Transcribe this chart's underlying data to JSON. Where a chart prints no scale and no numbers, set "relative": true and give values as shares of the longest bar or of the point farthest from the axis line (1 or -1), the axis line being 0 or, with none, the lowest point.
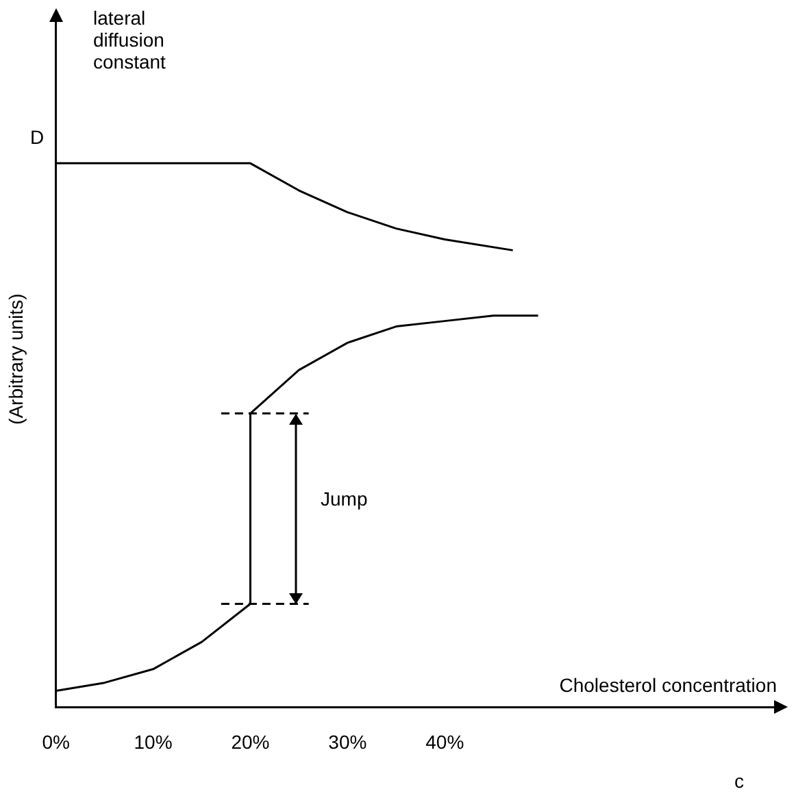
{
  "chart_data": {
    "type": "line",
    "relative": true,
    "xlabel": "Cholesterol concentration",
    "ylabel": "(Arbitrary units)",
    "xlim": [
      0,
      75
    ],
    "xticks": [
      {
        "value": 0,
        "label": "0%"
      },
      {
        "value": 10,
        "label": "10%"
      },
      {
        "value": 20,
        "label": "20%"
      },
      {
        "value": 30,
        "label": "30%"
      },
      {
        "value": 40,
        "label": "40%"
      }
    ],
    "series": [
      {
        "color": "#000000",
        "x": [
          0,
          20,
          25,
          30,
          35,
          40,
          47
        ],
        "values": [
          1,
          1,
          0.95,
          0.91,
          0.88,
          0.86,
          0.84
        ]
      },
      {
        "color": "#000000",
        "x": [
          0,
          5,
          10,
          15,
          20,
          20,
          25,
          30,
          35,
          40,
          45,
          49.6
        ],
        "values": [
          0.03,
          0.045,
          0.07,
          0.12,
          0.19,
          0.54,
          0.62,
          0.67,
          0.7,
          0.71,
          0.72,
          0.72
        ]
      },
      {
        "color": "#000000",
        "line_style": "dashed",
        "x": [
          17,
          26
        ],
        "values": [
          0.54,
          0.54
        ]
      },
      {
        "color": "#000000",
        "line_style": "dashed",
        "x": [
          17,
          26
        ],
        "values": [
          0.19,
          0.19
        ]
      }
    ],
    "annotations": [
      "D",
      "lateral diffusion constant",
      "c",
      "Jump"
    ],
    "marker": "none",
    "line_style": "solid",
    "grid": false,
    "legend": false
  }
}
